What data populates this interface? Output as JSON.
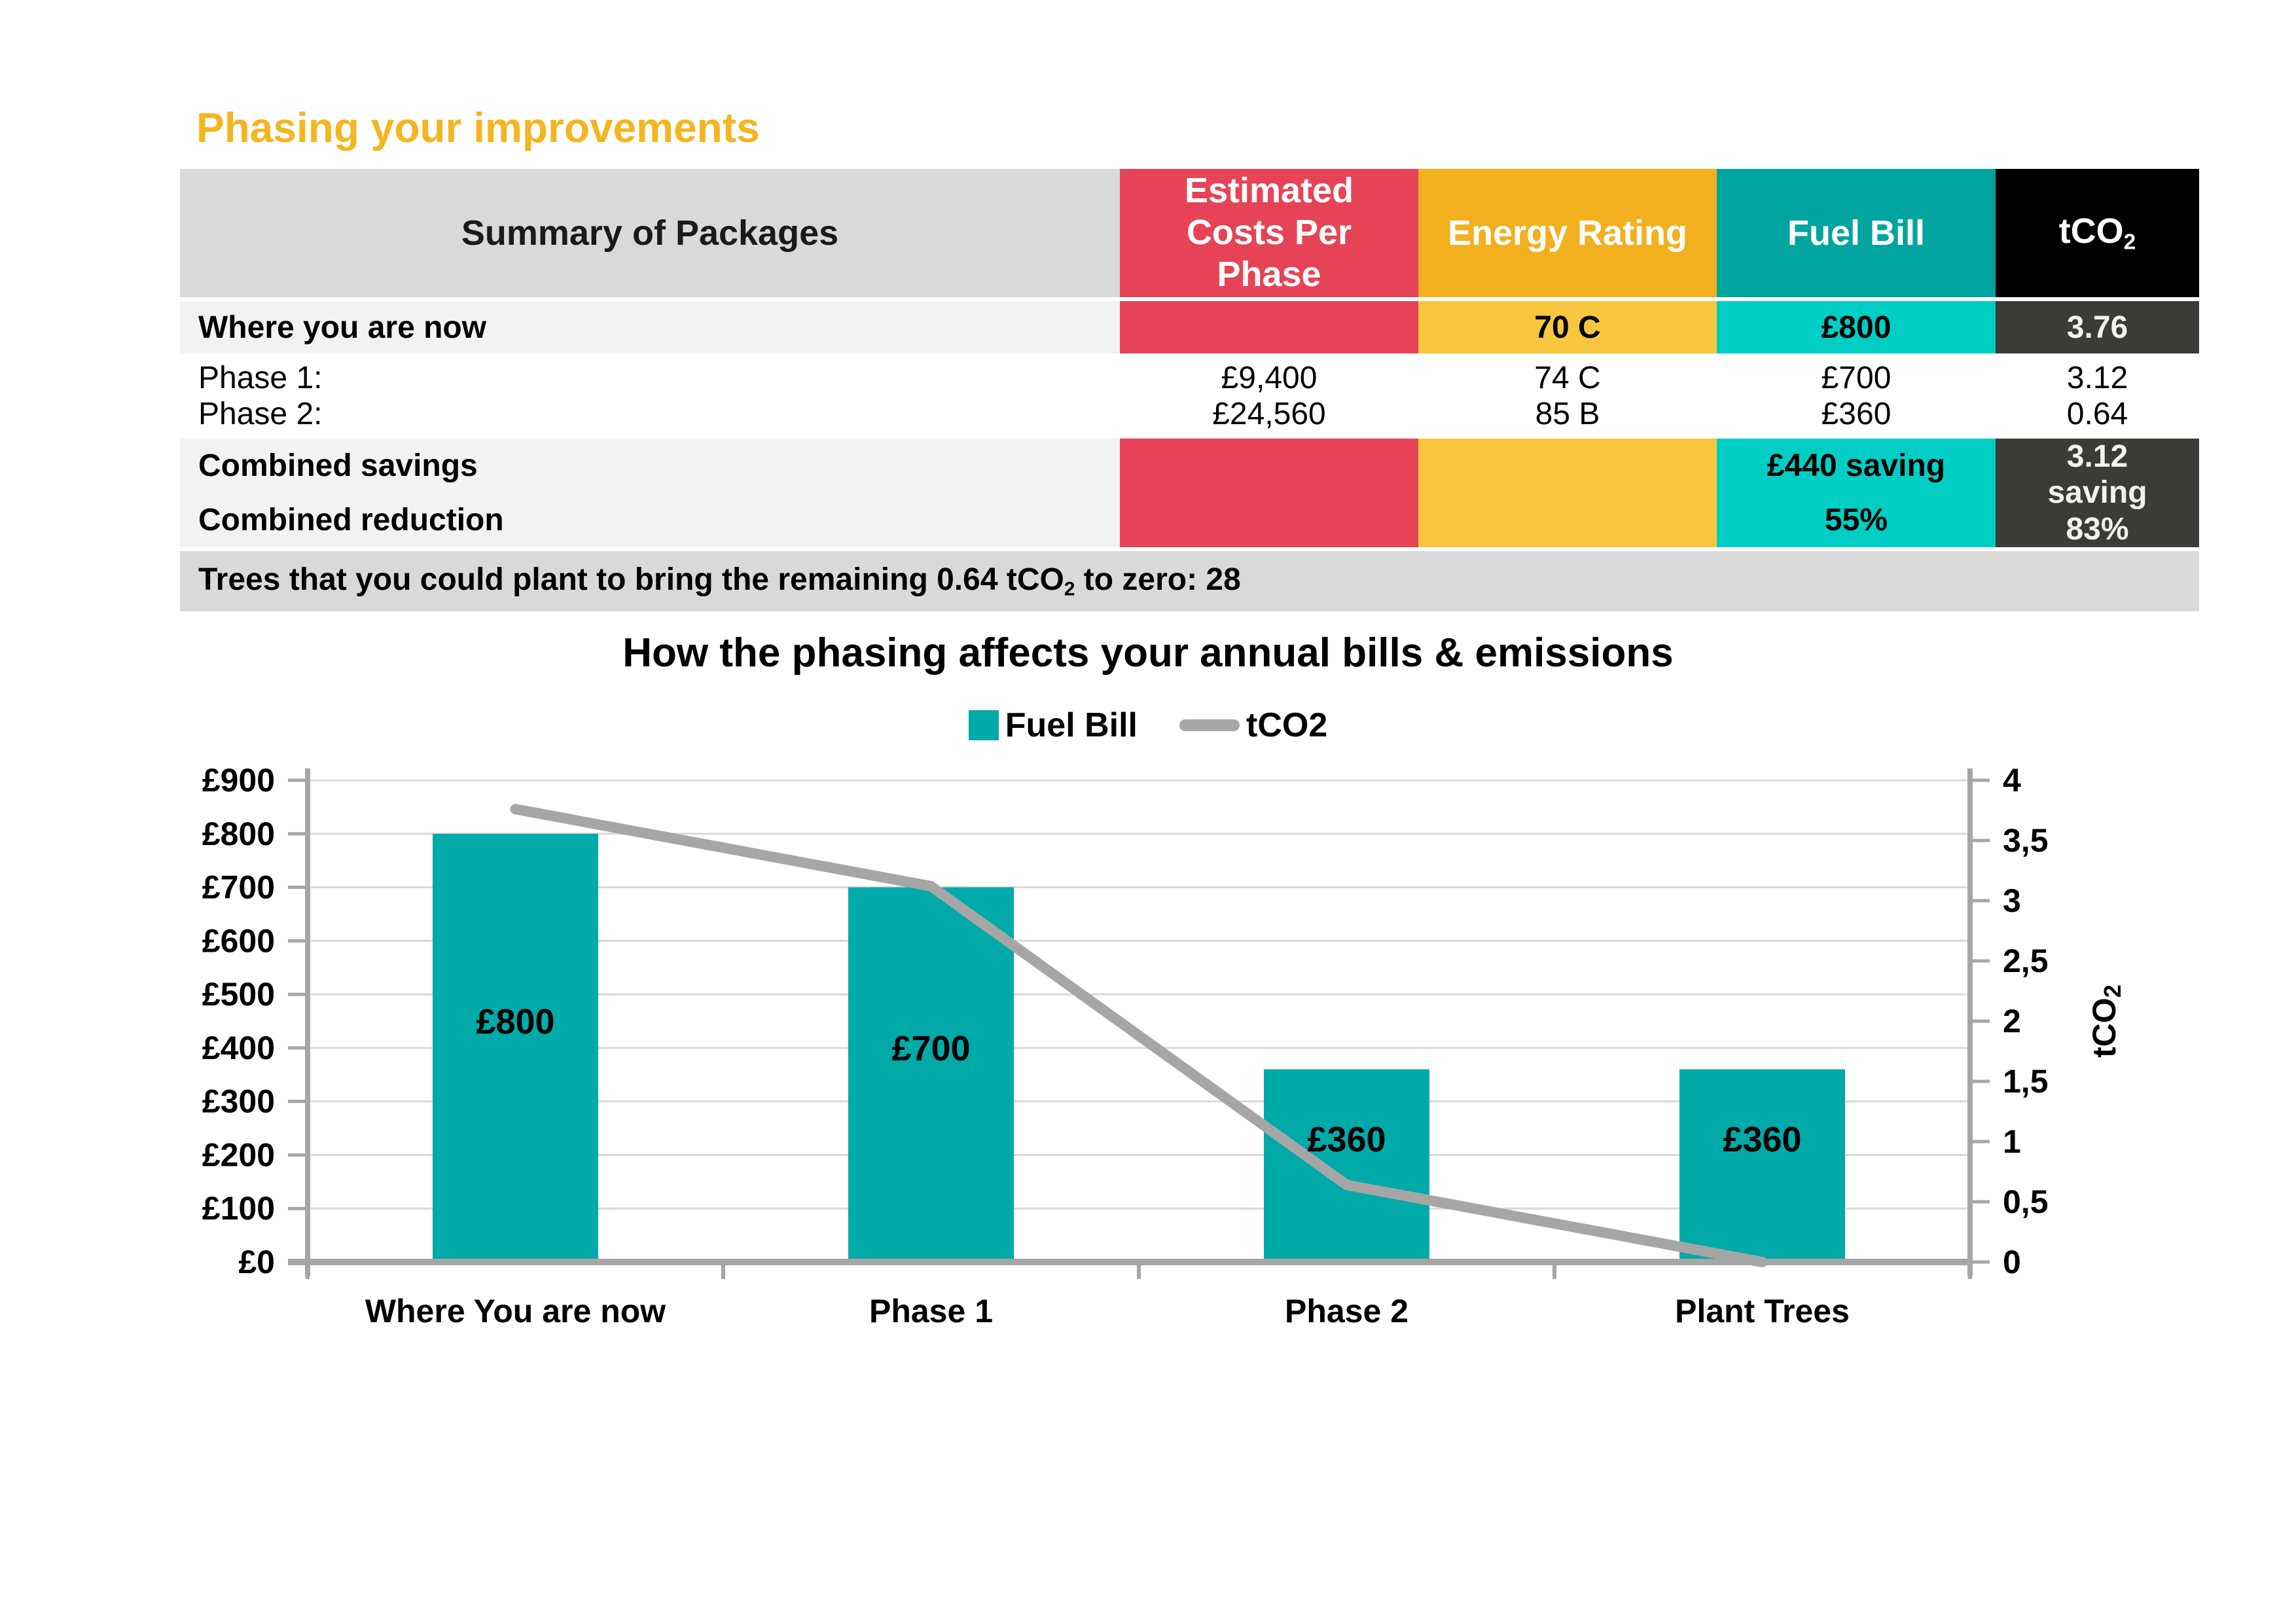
{
  "page": {
    "title": "Phasing your improvements"
  },
  "colors": {
    "title_yellow": "#F5B51F",
    "header_red": "#E64456",
    "header_yellow": "#F2B01E",
    "header_teal": "#00A5A0",
    "header_black": "#000000",
    "row_yellow_light": "#F9C63F",
    "row_teal_bright": "#00CEC4",
    "row_dark_gray": "#3B3B38",
    "summary_gray": "#D9D9D9",
    "row_light_gray": "#F2F2F2",
    "chart_bar_teal": "#00AAA8",
    "chart_line_gray": "#A6A6A6",
    "gridline_gray": "#D9D9D9"
  },
  "table": {
    "header": {
      "summary": "Summary of Packages",
      "costs": "Estimated Costs Per Phase",
      "rating": "Energy Rating",
      "fuel": "Fuel Bill",
      "tco2_main": "tCO",
      "tco2_sub": "2"
    },
    "now_row": {
      "label": "Where you are now",
      "rating": "70 C",
      "fuel": "£800",
      "tco2": "3.76"
    },
    "phases": {
      "label1": "Phase 1:",
      "label2": "Phase 2:",
      "cost1": "£9,400",
      "cost2": "£24,560",
      "rating1": "74 C",
      "rating2": "85 B",
      "fuel1": "£700",
      "fuel2": "£360",
      "tco2_1": "3.12",
      "tco2_2": "0.64"
    },
    "combined": {
      "savings_label": "Combined savings",
      "reduction_label": "Combined reduction",
      "fuel_saving": "£440 saving",
      "fuel_pct": "55%",
      "tco2_line1": "3.12",
      "tco2_line2": "saving",
      "tco2_pct": "83%"
    },
    "trees_prefix": "Trees that you could plant to bring the remaining 0.64 tCO",
    "trees_sub": "2",
    "trees_suffix": " to zero: 28"
  },
  "chart_data": {
    "type": "bar",
    "title": "How the phasing affects your annual bills & emissions",
    "categories": [
      "Where You are now",
      "Phase 1",
      "Phase 2",
      "Plant Trees"
    ],
    "series": [
      {
        "name": "Fuel Bill",
        "kind": "bar",
        "axis": "left",
        "color": "#00AAA8",
        "values": [
          800,
          700,
          360,
          360
        ],
        "labels": [
          "£800",
          "£700",
          "£360",
          "£360"
        ]
      },
      {
        "name": "tCO2",
        "kind": "line",
        "axis": "right",
        "color": "#A6A6A6",
        "values": [
          3.76,
          3.12,
          0.64,
          0
        ]
      }
    ],
    "left_axis": {
      "min": 0,
      "max": 900,
      "tick_labels": [
        "£0",
        "£100",
        "£200",
        "£300",
        "£400",
        "£500",
        "£600",
        "£700",
        "£800",
        "£900"
      ]
    },
    "right_axis": {
      "min": 0,
      "max": 4,
      "tick_labels": [
        "0",
        "0,5",
        "1",
        "1,5",
        "2",
        "2,5",
        "3",
        "3,5",
        "4"
      ],
      "label_main": "tCO",
      "label_sub": "2"
    },
    "grid": true,
    "legend_position": "top"
  }
}
